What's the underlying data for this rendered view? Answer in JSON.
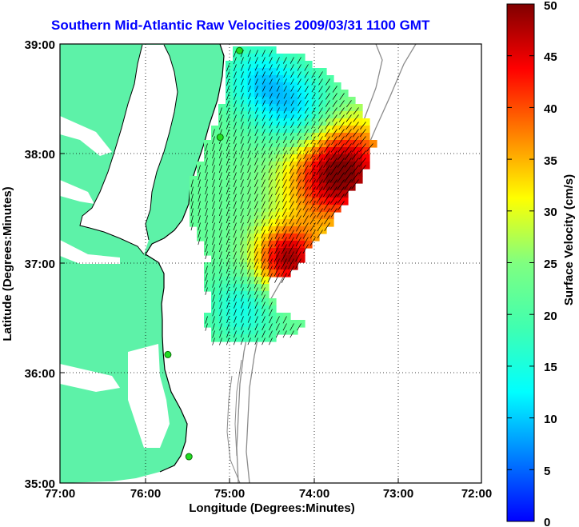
{
  "title": "Southern Mid-Atlantic Raw Velocities 2009/03/31 1100 GMT",
  "x_axis": {
    "label": "Longitude (Degrees:Minutes)",
    "ticks": [
      "77:00",
      "76:00",
      "75:00",
      "74:00",
      "73:00",
      "72:00"
    ]
  },
  "y_axis": {
    "label": "Latitude (Degrees:Minutes)",
    "ticks": [
      "39:00",
      "38:00",
      "37:00",
      "36:00",
      "35:00"
    ]
  },
  "colorbar": {
    "label": "Surface Velocity (cm/s)",
    "ticks": [
      "0",
      "5",
      "10",
      "15",
      "20",
      "25",
      "30",
      "35",
      "40",
      "45",
      "50"
    ],
    "range": [
      0,
      50
    ],
    "colormap": "jet"
  },
  "colors": {
    "land": "#5df2a8",
    "title": "#0000ff",
    "coastline": "#000000",
    "bathymetry": "#8c8c8c",
    "station": "#22dd22"
  },
  "stations": [
    {
      "lon": -74.87,
      "lat": 38.94
    },
    {
      "lon": -75.1,
      "lat": 38.15
    },
    {
      "lon": -75.72,
      "lat": 36.17
    },
    {
      "lon": -75.47,
      "lat": 35.24
    }
  ]
}
